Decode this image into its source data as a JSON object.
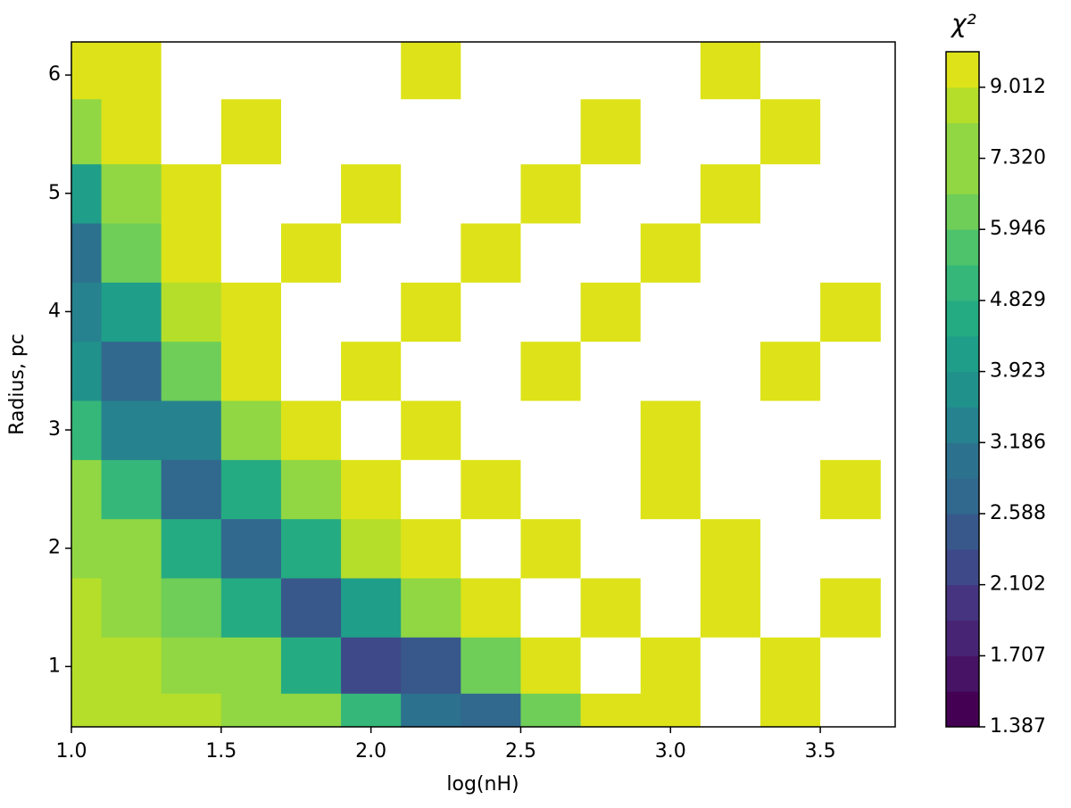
{
  "chart_data": {
    "type": "contourf",
    "x_label": "log(nH)",
    "y_label": "Radius, pc",
    "colorbar_label": "χ²",
    "xlim": [
      1.0,
      3.75
    ],
    "ylim": [
      0.49,
      6.28
    ],
    "xticks": [
      {
        "value": 1,
        "label": "1.0"
      },
      1.5,
      {
        "value": 2,
        "label": "2.0"
      },
      2.5,
      {
        "value": 3,
        "label": "3.0"
      },
      3.5
    ],
    "yticks": [
      1,
      2,
      3,
      4,
      5,
      6
    ],
    "x": [
      1.0,
      1.2,
      1.4,
      1.6,
      1.8,
      2.0,
      2.2,
      2.4,
      2.6,
      2.8,
      3.0,
      3.2,
      3.4,
      3.6
    ],
    "y": [
      0.55,
      1.0,
      1.5,
      2.0,
      2.5,
      3.0,
      3.5,
      4.0,
      4.5,
      5.0,
      5.5,
      6.1
    ],
    "z": [
      [
        8.5,
        8.5,
        8.4,
        8.0,
        7.0,
        5.0,
        3.0,
        2.6,
        6.5,
        9.5,
        9.6,
        10.5,
        9.7,
        10.4
      ],
      [
        8.5,
        8.3,
        7.8,
        6.8,
        4.5,
        2.2,
        2.5,
        6.5,
        9.5,
        10.3,
        9.6,
        10.8,
        9.8,
        10.2
      ],
      [
        8.3,
        7.8,
        6.5,
        4.5,
        2.5,
        4.0,
        8.0,
        9.6,
        10.4,
        9.8,
        10.6,
        9.9,
        10.3,
        9.7
      ],
      [
        7.8,
        6.8,
        4.5,
        2.6,
        4.5,
        8.5,
        9.7,
        10.5,
        9.9,
        10.7,
        10.2,
        9.8,
        10.5,
        10.1
      ],
      [
        6.8,
        5.0,
        2.8,
        4.5,
        8.0,
        9.6,
        10.3,
        9.8,
        10.6,
        10.1,
        9.9,
        10.4,
        10.8,
        9.8
      ],
      [
        5.0,
        3.3,
        3.5,
        7.5,
        9.5,
        10.2,
        9.9,
        10.6,
        10.0,
        10.5,
        9.8,
        10.3,
        10.1,
        10.6
      ],
      [
        3.6,
        2.6,
        6.0,
        9.3,
        10.4,
        9.8,
        10.7,
        10.2,
        9.9,
        10.6,
        10.1,
        10.4,
        9.7,
        10.3
      ],
      [
        3.2,
        4.0,
        8.5,
        9.5,
        10.6,
        10.1,
        9.8,
        10.4,
        10.7,
        9.9,
        10.3,
        10.5,
        10.0,
        9.8
      ],
      [
        3.0,
        6.0,
        9.4,
        10.3,
        9.9,
        10.5,
        10.2,
        9.7,
        10.4,
        10.8,
        9.9,
        10.2,
        10.6,
        10.1
      ],
      [
        4.0,
        8.0,
        9.6,
        10.5,
        10.2,
        9.8,
        10.6,
        10.3,
        9.9,
        10.4,
        10.7,
        9.8,
        10.2,
        10.5
      ],
      [
        7.0,
        9.4,
        10.2,
        9.8,
        10.5,
        10.1,
        10.4,
        10.8,
        10.0,
        9.9,
        10.3,
        10.6,
        9.8,
        10.4
      ],
      [
        9.5,
        9.7,
        10.4,
        10.0,
        10.6,
        10.2,
        9.9,
        10.5,
        10.3,
        10.7,
        10.1,
        9.8,
        10.4,
        10.2
      ]
    ],
    "levels": [
      1.387,
      1.539,
      1.707,
      1.894,
      2.102,
      2.332,
      2.588,
      2.871,
      3.186,
      3.535,
      3.923,
      4.353,
      4.829,
      5.359,
      5.946,
      6.598,
      7.32,
      8.123,
      9.012,
      10.0
    ],
    "colors": [
      "#440154",
      "#471365",
      "#482475",
      "#463480",
      "#3e4989",
      "#38588c",
      "#31688e",
      "#2c718e",
      "#26828e",
      "#21918c",
      "#1f9e89",
      "#25ab82",
      "#35b779",
      "#4ec36b",
      "#6ece58",
      "#90d743",
      "#90d743",
      "#b5de2b",
      "#dde318"
    ],
    "colorbar_ticks": [
      1.387,
      1.707,
      2.102,
      2.588,
      3.186,
      3.923,
      4.829,
      5.946,
      {
        "value": 7.32,
        "label": "7.320"
      },
      9.012
    ]
  }
}
